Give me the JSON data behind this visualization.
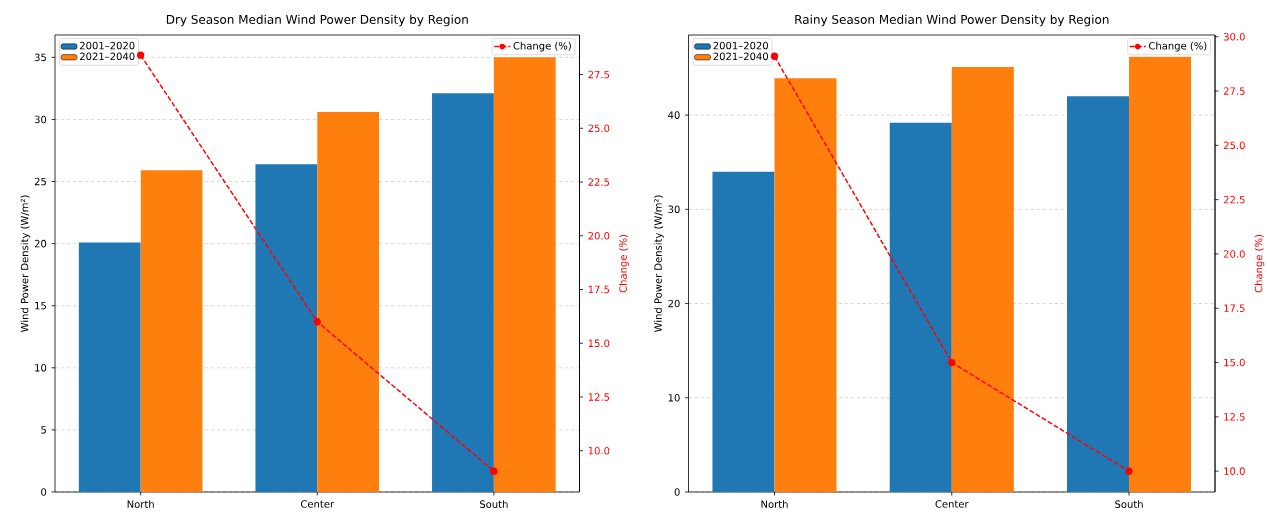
{
  "chart_data": [
    {
      "type": "bar",
      "title": "Dry Season Median Wind Power Density by Region",
      "categories": [
        "North",
        "Center",
        "South"
      ],
      "ylabel": "Wind Power Density (W/m²)",
      "y2label": "Change (%)",
      "series": [
        {
          "name": "2001–2020",
          "color": "#1f77b4",
          "values": [
            20.1,
            26.4,
            32.1
          ]
        },
        {
          "name": "2021–2040",
          "color": "#ff7f0e",
          "values": [
            25.9,
            30.6,
            35.0
          ]
        },
        {
          "name": "Change (%)",
          "type": "line",
          "axis": "y2",
          "color": "#ff0000",
          "values": [
            28.4,
            16.0,
            9.05
          ]
        }
      ],
      "ylim": [
        0,
        36.8
      ],
      "yticks": [
        0,
        5,
        10,
        15,
        20,
        25,
        30,
        35
      ],
      "y2lim": [
        8.08,
        29.34
      ],
      "y2ticks": [
        {
          "value": 10,
          "label": "10.0"
        },
        12.5,
        {
          "value": 15,
          "label": "15.0"
        },
        17.5,
        {
          "value": 20,
          "label": "20.0"
        },
        22.5,
        {
          "value": 25,
          "label": "25.0"
        },
        27.5
      ],
      "grid": "y",
      "legend": "top left",
      "marker": "circle",
      "line_style": "dashed"
    },
    {
      "type": "bar",
      "title": "Rainy Season Median Wind Power Density by Region",
      "categories": [
        "North",
        "Center",
        "South"
      ],
      "ylabel": "Wind Power Density (W/m²)",
      "y2label": "Change (%)",
      "series": [
        {
          "name": "2001–2020",
          "color": "#1f77b4",
          "values": [
            34.0,
            39.2,
            42.0
          ]
        },
        {
          "name": "2021–2040",
          "color": "#ff7f0e",
          "values": [
            43.9,
            45.1,
            46.2
          ]
        },
        {
          "name": "Change (%)",
          "type": "line",
          "axis": "y2",
          "color": "#ff0000",
          "values": [
            29.1,
            15.0,
            10.0
          ]
        }
      ],
      "ylim": [
        0,
        48.5
      ],
      "yticks": [
        0,
        10,
        20,
        30,
        40
      ],
      "y2lim": [
        9.04,
        30.08
      ],
      "y2ticks": [
        {
          "value": 10,
          "label": "10.0"
        },
        12.5,
        {
          "value": 15,
          "label": "15.0"
        },
        17.5,
        {
          "value": 20,
          "label": "20.0"
        },
        22.5,
        {
          "value": 25,
          "label": "25.0"
        },
        27.5,
        {
          "value": 30,
          "label": "30.0"
        }
      ],
      "grid": "y",
      "legend": "top left",
      "marker": "circle",
      "line_style": "dashed"
    }
  ]
}
